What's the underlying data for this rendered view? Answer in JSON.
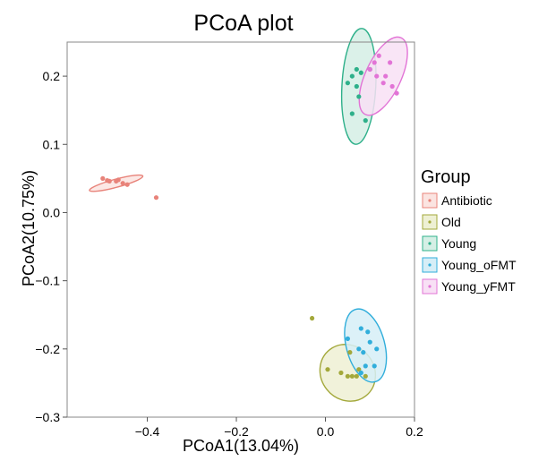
{
  "chart_data": {
    "type": "scatter",
    "title": "PCoA plot",
    "xlabel": "PCoA1(13.04%)",
    "ylabel": "PCoA2(10.75%)",
    "xlim": [
      -0.58,
      0.2
    ],
    "ylim": [
      -0.3,
      0.25
    ],
    "x_ticks": [
      -0.4,
      -0.2,
      0.0,
      0.2
    ],
    "x_tick_labels": [
      "−0.4",
      "−0.2",
      "0.0",
      "0.2"
    ],
    "y_ticks": [
      0.2,
      0.1,
      0.0,
      -0.1,
      -0.2,
      -0.3
    ],
    "y_tick_labels": [
      "0.2",
      "0.1",
      "0.0",
      "−0.1",
      "−0.2",
      "−0.3"
    ],
    "grid": false,
    "legend": {
      "title": "Group",
      "position": "right"
    },
    "series": [
      {
        "name": "Antibiotic",
        "color": "#E8837A",
        "fill": "#FBE4E1",
        "ellipse": {
          "center": [
            -0.47,
            0.043
          ],
          "rx": 0.062,
          "ry": 0.006,
          "angle_deg": -15
        },
        "points": [
          [
            -0.5,
            0.05
          ],
          [
            -0.49,
            0.047
          ],
          [
            -0.485,
            0.046
          ],
          [
            -0.47,
            0.046
          ],
          [
            -0.465,
            0.048
          ],
          [
            -0.455,
            0.043
          ],
          [
            -0.445,
            0.041
          ],
          [
            -0.38,
            0.022
          ]
        ]
      },
      {
        "name": "Old",
        "color": "#A3A83A",
        "fill": "#EEF0D4",
        "ellipse": {
          "center": [
            0.05,
            -0.235
          ],
          "rx": 0.06,
          "ry": 0.043,
          "angle_deg": -38
        },
        "points": [
          [
            -0.03,
            -0.155
          ],
          [
            0.005,
            -0.23
          ],
          [
            0.035,
            -0.235
          ],
          [
            0.05,
            -0.24
          ],
          [
            0.055,
            -0.205
          ],
          [
            0.07,
            -0.24
          ],
          [
            0.075,
            -0.23
          ],
          [
            0.09,
            -0.24
          ],
          [
            0.06,
            -0.24
          ]
        ]
      },
      {
        "name": "Young",
        "color": "#2EB08A",
        "fill": "#D5EFE5",
        "ellipse": {
          "center": [
            0.075,
            0.185
          ],
          "rx": 0.038,
          "ry": 0.085,
          "angle_deg": 3
        },
        "points": [
          [
            0.05,
            0.19
          ],
          [
            0.07,
            0.21
          ],
          [
            0.06,
            0.2
          ],
          [
            0.075,
            0.17
          ],
          [
            0.06,
            0.145
          ],
          [
            0.09,
            0.135
          ],
          [
            0.1,
            0.21
          ],
          [
            0.08,
            0.205
          ],
          [
            0.07,
            0.185
          ]
        ]
      },
      {
        "name": "Young_oFMT",
        "color": "#31AEDB",
        "fill": "#D6EEF7",
        "ellipse": {
          "center": [
            0.09,
            -0.195
          ],
          "rx": 0.043,
          "ry": 0.055,
          "angle_deg": -15
        },
        "points": [
          [
            0.05,
            -0.185
          ],
          [
            0.075,
            -0.2
          ],
          [
            0.08,
            -0.17
          ],
          [
            0.095,
            -0.175
          ],
          [
            0.1,
            -0.19
          ],
          [
            0.085,
            -0.205
          ],
          [
            0.09,
            -0.225
          ],
          [
            0.11,
            -0.225
          ],
          [
            0.115,
            -0.2
          ],
          [
            0.08,
            -0.235
          ]
        ]
      },
      {
        "name": "Young_yFMT",
        "color": "#E274D6",
        "fill": "#F8E0F5",
        "ellipse": {
          "center": [
            0.13,
            0.2
          ],
          "rx": 0.04,
          "ry": 0.062,
          "angle_deg": 25
        },
        "points": [
          [
            0.1,
            0.21
          ],
          [
            0.11,
            0.22
          ],
          [
            0.12,
            0.23
          ],
          [
            0.115,
            0.2
          ],
          [
            0.135,
            0.2
          ],
          [
            0.145,
            0.22
          ],
          [
            0.15,
            0.185
          ],
          [
            0.16,
            0.175
          ],
          [
            0.13,
            0.19
          ]
        ]
      }
    ]
  }
}
